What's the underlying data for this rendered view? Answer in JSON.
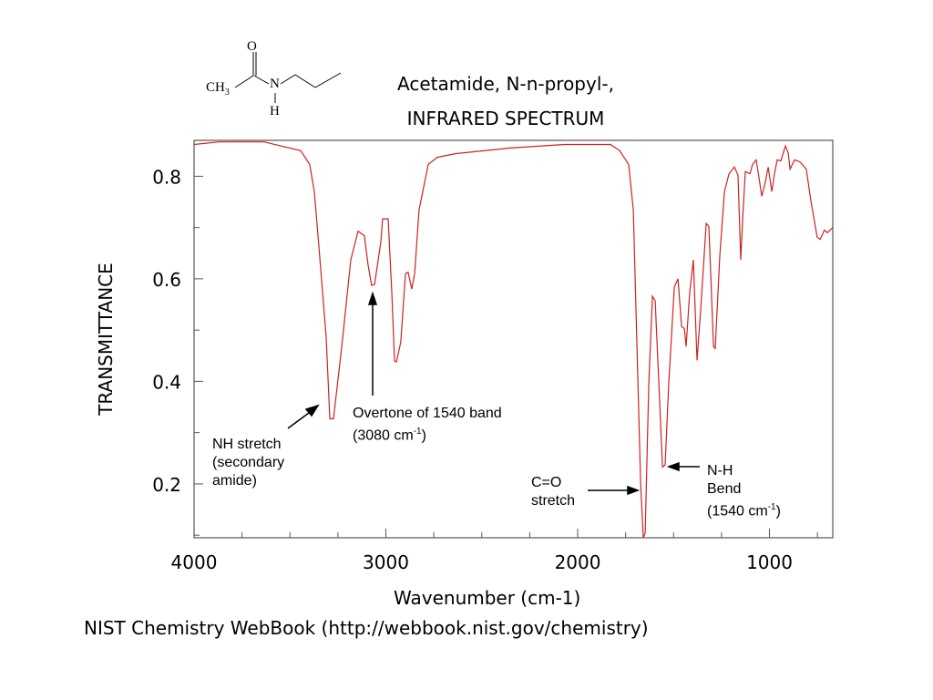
{
  "chart_data": {
    "type": "line",
    "title": "Acetamide, N-n-propyl-,",
    "subtitle": "INFRARED SPECTRUM",
    "xlabel": "Wavenumber (cm-1)",
    "ylabel": "TRANSMITTANCE",
    "xlim": [
      4000,
      670
    ],
    "ylim": [
      0.095,
      0.87
    ],
    "x_reversed": true,
    "grid": false,
    "x_ticks": [
      4000,
      3000,
      2000,
      1000
    ],
    "x_tick_labels": [
      "4000",
      "3000",
      "2000",
      "1000"
    ],
    "y_ticks": [
      0.2,
      0.4,
      0.6,
      0.8
    ],
    "y_tick_labels": [
      "0.2",
      "0.4",
      "0.6",
      "0.8"
    ],
    "line_color": "#cc2222",
    "series": [
      {
        "x": [
          4000,
          3870,
          3635,
          3444,
          3397,
          3373,
          3349,
          3311,
          3292,
          3273,
          3230,
          3183,
          3145,
          3112,
          3093,
          3074,
          3059,
          3026,
          3017,
          2988,
          2969,
          2955,
          2945,
          2922,
          2898,
          2884,
          2865,
          2850,
          2827,
          2779,
          2732,
          2637,
          2352,
          2067,
          1829,
          1781,
          1734,
          1710,
          1691,
          1672,
          1658,
          1648,
          1629,
          1610,
          1596,
          1577,
          1558,
          1544,
          1525,
          1496,
          1477,
          1458,
          1444,
          1435,
          1416,
          1397,
          1378,
          1359,
          1330,
          1316,
          1292,
          1283,
          1259,
          1235,
          1211,
          1183,
          1164,
          1150,
          1140,
          1126,
          1102,
          1088,
          1069,
          1040,
          1022,
          1007,
          988,
          974,
          960,
          941,
          917,
          903,
          893,
          869,
          841,
          808,
          784,
          751,
          736,
          713,
          698,
          670
        ],
        "y": [
          0.862,
          0.867,
          0.867,
          0.85,
          0.823,
          0.77,
          0.663,
          0.486,
          0.327,
          0.327,
          0.468,
          0.637,
          0.693,
          0.684,
          0.628,
          0.587,
          0.589,
          0.672,
          0.717,
          0.717,
          0.574,
          0.44,
          0.438,
          0.477,
          0.61,
          0.613,
          0.58,
          0.61,
          0.734,
          0.823,
          0.837,
          0.844,
          0.855,
          0.862,
          0.862,
          0.85,
          0.823,
          0.734,
          0.468,
          0.201,
          0.095,
          0.104,
          0.397,
          0.566,
          0.557,
          0.397,
          0.233,
          0.237,
          0.397,
          0.584,
          0.6,
          0.507,
          0.503,
          0.468,
          0.574,
          0.637,
          0.441,
          0.539,
          0.708,
          0.702,
          0.468,
          0.464,
          0.645,
          0.77,
          0.805,
          0.818,
          0.802,
          0.637,
          0.717,
          0.809,
          0.805,
          0.823,
          0.832,
          0.761,
          0.788,
          0.818,
          0.77,
          0.805,
          0.832,
          0.83,
          0.859,
          0.846,
          0.814,
          0.832,
          0.828,
          0.814,
          0.752,
          0.681,
          0.677,
          0.695,
          0.69,
          0.7
        ]
      }
    ],
    "annotations": {
      "nh_stretch": [
        "NH stretch",
        "(secondary",
        "amide)"
      ],
      "overtone": [
        "Overtone of 1540 band",
        "(3080 cm",
        "-1",
        ")"
      ],
      "co_stretch": [
        "C=O",
        "stretch"
      ],
      "nh_bend": [
        "N-H",
        "Bend",
        "(1540 cm",
        "-1",
        ")"
      ]
    }
  },
  "molecule": {
    "o": "O",
    "ch3": "CH",
    "ch3_sub": "3",
    "n": "N",
    "h": "H"
  },
  "footer": "NIST Chemistry WebBook (http://webbook.nist.gov/chemistry)"
}
